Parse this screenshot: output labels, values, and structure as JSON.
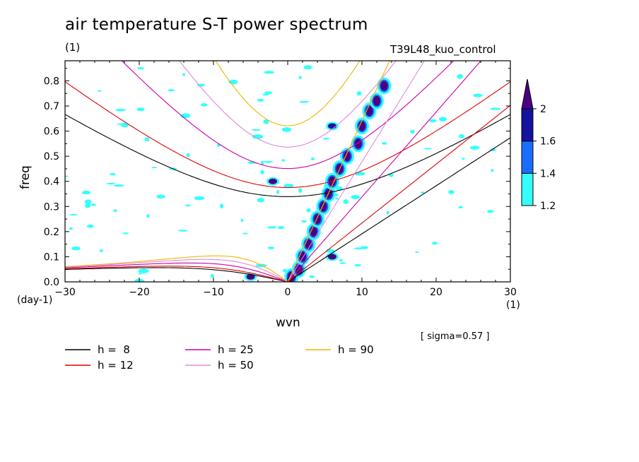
{
  "header": {
    "title": "air temperature S-T power spectrum",
    "subtitle": "(1)",
    "run_name": "T39L48_kuo_control",
    "y_unit": "(day-1)",
    "x_unit": "(1)",
    "sigma_note": "[ sigma=0.57 ]"
  },
  "chart_data": {
    "type": "heatmap",
    "title": "air temperature S-T power spectrum",
    "xlabel": "wvn",
    "ylabel": "freq",
    "xlim": [
      -30,
      30
    ],
    "ylim": [
      0,
      0.88
    ],
    "xticks": [
      -30,
      -20,
      -10,
      0,
      10,
      20,
      30
    ],
    "yticks": [
      0.0,
      0.1,
      0.2,
      0.3,
      0.4,
      0.5,
      0.6,
      0.7,
      0.8
    ],
    "grid": false,
    "colorbar": {
      "levels": [
        1.2,
        1.4,
        1.6,
        2
      ],
      "colors": [
        "#33ffff",
        "#1a6eff",
        "#1414a0",
        "#4b0082"
      ],
      "extend": "max"
    },
    "shaded_regions": [
      {
        "desc": "Kelvin wave ridge",
        "points": [
          [
            0.5,
            0.02
          ],
          [
            1.5,
            0.05
          ],
          [
            2,
            0.1
          ],
          [
            2.8,
            0.15
          ],
          [
            3.5,
            0.2
          ],
          [
            4,
            0.25
          ],
          [
            4.8,
            0.3
          ],
          [
            5.5,
            0.35
          ],
          [
            6,
            0.4
          ],
          [
            7,
            0.45
          ],
          [
            8,
            0.5
          ],
          [
            9.5,
            0.55
          ],
          [
            10,
            0.62
          ],
          [
            11,
            0.68
          ],
          [
            12,
            0.72
          ],
          [
            13,
            0.78
          ]
        ],
        "level": 2
      },
      {
        "desc": "blob",
        "x": -5,
        "y": 0.02,
        "level": 2
      },
      {
        "desc": "blob",
        "x": -2,
        "y": 0.4,
        "level": 2
      },
      {
        "desc": "blob",
        "x": 6,
        "y": 0.62,
        "level": 1.6
      },
      {
        "desc": "blob",
        "x": 6,
        "y": 0.1,
        "level": 2
      }
    ],
    "dispersion_curves": [
      {
        "name": "h =  8",
        "h": 8,
        "color": "#000000"
      },
      {
        "name": "h = 12",
        "h": 12,
        "color": "#e00000"
      },
      {
        "name": "h = 25",
        "h": 25,
        "color": "#cc00aa"
      },
      {
        "name": "h = 50",
        "h": 50,
        "color": "#dd88dd"
      },
      {
        "name": "h = 90",
        "h": 90,
        "color": "#f0b400"
      }
    ]
  },
  "legend": [
    {
      "label": "h =  8",
      "color": "#000000"
    },
    {
      "label": "h = 12",
      "color": "#e00000"
    },
    {
      "label": "h = 25",
      "color": "#cc00aa"
    },
    {
      "label": "h = 50",
      "color": "#dd88dd"
    },
    {
      "label": "h = 90",
      "color": "#f0b400"
    }
  ]
}
